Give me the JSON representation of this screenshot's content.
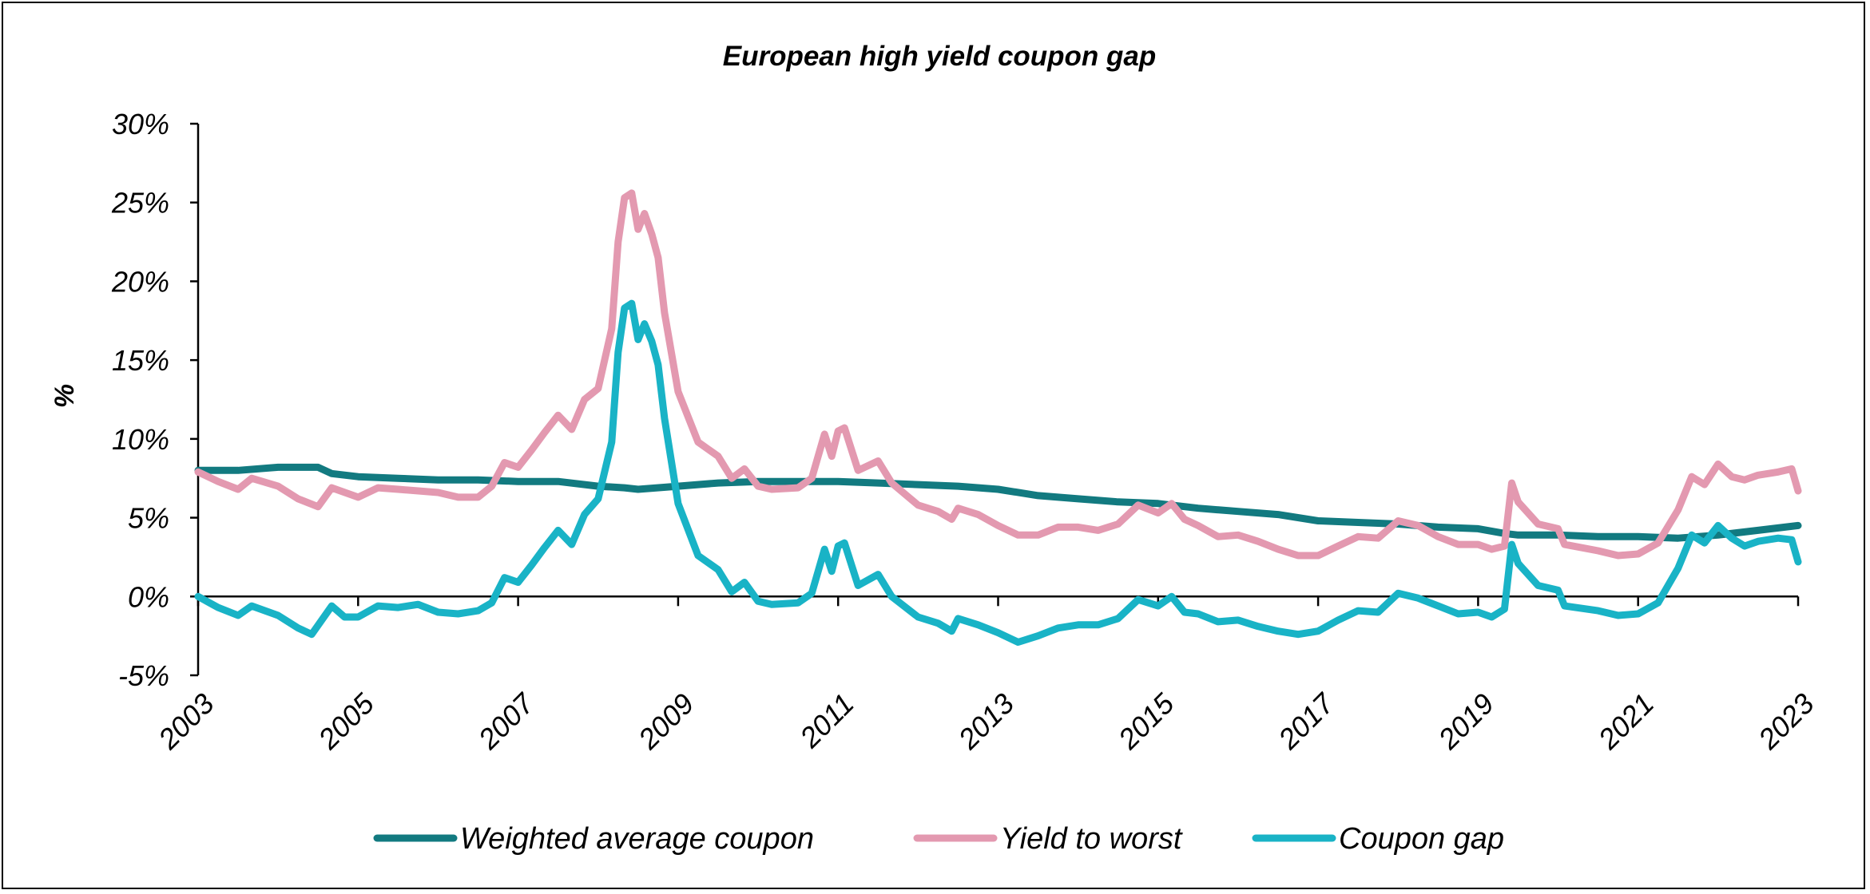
{
  "chart_data": {
    "type": "line",
    "title": "European high yield coupon gap",
    "ylabel": "%",
    "xlabel": "",
    "ylim": [
      -5,
      30
    ],
    "xlim": [
      2003,
      2023
    ],
    "y_ticks": [
      {
        "value": -5,
        "label": "-5%"
      },
      {
        "value": 0,
        "label": "0%"
      },
      {
        "value": 5,
        "label": "5%"
      },
      {
        "value": 10,
        "label": "10%"
      },
      {
        "value": 15,
        "label": "15%"
      },
      {
        "value": 20,
        "label": "20%"
      },
      {
        "value": 25,
        "label": "25%"
      },
      {
        "value": 30,
        "label": "30%"
      }
    ],
    "x_ticks": [
      {
        "value": 2003,
        "label": "2003"
      },
      {
        "value": 2005,
        "label": "2005"
      },
      {
        "value": 2007,
        "label": "2007"
      },
      {
        "value": 2009,
        "label": "2009"
      },
      {
        "value": 2011,
        "label": "2011"
      },
      {
        "value": 2013,
        "label": "2013"
      },
      {
        "value": 2015,
        "label": "2015"
      },
      {
        "value": 2017,
        "label": "2017"
      },
      {
        "value": 2019,
        "label": "2019"
      },
      {
        "value": 2021,
        "label": "2021"
      },
      {
        "value": 2023,
        "label": "2023"
      }
    ],
    "grid": false,
    "legend_position": "bottom",
    "series": [
      {
        "name": "Weighted average coupon",
        "color": "#127A80",
        "points": [
          [
            2003.0,
            8.0
          ],
          [
            2003.5,
            8.0
          ],
          [
            2004.0,
            8.2
          ],
          [
            2004.5,
            8.2
          ],
          [
            2004.67,
            7.8
          ],
          [
            2005.0,
            7.6
          ],
          [
            2005.5,
            7.5
          ],
          [
            2006.0,
            7.4
          ],
          [
            2006.5,
            7.4
          ],
          [
            2007.0,
            7.3
          ],
          [
            2007.5,
            7.3
          ],
          [
            2008.0,
            7.0
          ],
          [
            2008.33,
            6.9
          ],
          [
            2008.5,
            6.8
          ],
          [
            2009.0,
            7.0
          ],
          [
            2009.5,
            7.2
          ],
          [
            2010.0,
            7.3
          ],
          [
            2010.5,
            7.3
          ],
          [
            2011.0,
            7.3
          ],
          [
            2011.5,
            7.2
          ],
          [
            2012.0,
            7.1
          ],
          [
            2012.5,
            7.0
          ],
          [
            2013.0,
            6.8
          ],
          [
            2013.5,
            6.4
          ],
          [
            2014.0,
            6.2
          ],
          [
            2014.5,
            6.0
          ],
          [
            2015.0,
            5.9
          ],
          [
            2015.5,
            5.6
          ],
          [
            2016.0,
            5.4
          ],
          [
            2016.5,
            5.2
          ],
          [
            2017.0,
            4.8
          ],
          [
            2017.5,
            4.7
          ],
          [
            2018.0,
            4.6
          ],
          [
            2018.5,
            4.4
          ],
          [
            2019.0,
            4.3
          ],
          [
            2019.33,
            4.0
          ],
          [
            2019.5,
            3.9
          ],
          [
            2020.0,
            3.9
          ],
          [
            2020.5,
            3.8
          ],
          [
            2021.0,
            3.8
          ],
          [
            2021.5,
            3.7
          ],
          [
            2022.0,
            3.9
          ],
          [
            2022.5,
            4.2
          ],
          [
            2023.0,
            4.5
          ]
        ]
      },
      {
        "name": "Yield to worst",
        "color": "#E399B0",
        "points": [
          [
            2003.0,
            7.9
          ],
          [
            2003.25,
            7.3
          ],
          [
            2003.5,
            6.8
          ],
          [
            2003.67,
            7.5
          ],
          [
            2004.0,
            7.0
          ],
          [
            2004.25,
            6.2
          ],
          [
            2004.5,
            5.7
          ],
          [
            2004.67,
            6.9
          ],
          [
            2005.0,
            6.3
          ],
          [
            2005.25,
            6.9
          ],
          [
            2005.5,
            6.8
          ],
          [
            2006.0,
            6.6
          ],
          [
            2006.25,
            6.3
          ],
          [
            2006.5,
            6.3
          ],
          [
            2006.67,
            7.0
          ],
          [
            2006.83,
            8.5
          ],
          [
            2007.0,
            8.2
          ],
          [
            2007.17,
            9.3
          ],
          [
            2007.33,
            10.4
          ],
          [
            2007.5,
            11.5
          ],
          [
            2007.67,
            10.6
          ],
          [
            2007.83,
            12.5
          ],
          [
            2008.0,
            13.2
          ],
          [
            2008.17,
            17.0
          ],
          [
            2008.25,
            22.5
          ],
          [
            2008.33,
            25.3
          ],
          [
            2008.42,
            25.6
          ],
          [
            2008.5,
            23.3
          ],
          [
            2008.58,
            24.3
          ],
          [
            2008.67,
            23.0
          ],
          [
            2008.75,
            21.5
          ],
          [
            2008.83,
            18.0
          ],
          [
            2009.0,
            13.0
          ],
          [
            2009.25,
            9.8
          ],
          [
            2009.5,
            8.9
          ],
          [
            2009.67,
            7.5
          ],
          [
            2009.83,
            8.1
          ],
          [
            2010.0,
            7.0
          ],
          [
            2010.17,
            6.8
          ],
          [
            2010.5,
            6.9
          ],
          [
            2010.67,
            7.5
          ],
          [
            2010.83,
            10.3
          ],
          [
            2010.92,
            8.9
          ],
          [
            2011.0,
            10.5
          ],
          [
            2011.08,
            10.7
          ],
          [
            2011.25,
            8.0
          ],
          [
            2011.5,
            8.6
          ],
          [
            2011.67,
            7.2
          ],
          [
            2012.0,
            5.8
          ],
          [
            2012.25,
            5.4
          ],
          [
            2012.42,
            4.9
          ],
          [
            2012.5,
            5.6
          ],
          [
            2012.75,
            5.2
          ],
          [
            2013.0,
            4.5
          ],
          [
            2013.25,
            3.9
          ],
          [
            2013.5,
            3.9
          ],
          [
            2013.75,
            4.4
          ],
          [
            2014.0,
            4.4
          ],
          [
            2014.25,
            4.2
          ],
          [
            2014.5,
            4.6
          ],
          [
            2014.75,
            5.8
          ],
          [
            2015.0,
            5.3
          ],
          [
            2015.17,
            5.9
          ],
          [
            2015.33,
            4.9
          ],
          [
            2015.5,
            4.5
          ],
          [
            2015.75,
            3.8
          ],
          [
            2016.0,
            3.9
          ],
          [
            2016.25,
            3.5
          ],
          [
            2016.5,
            3.0
          ],
          [
            2016.75,
            2.6
          ],
          [
            2017.0,
            2.6
          ],
          [
            2017.25,
            3.2
          ],
          [
            2017.5,
            3.8
          ],
          [
            2017.75,
            3.7
          ],
          [
            2018.0,
            4.8
          ],
          [
            2018.25,
            4.5
          ],
          [
            2018.5,
            3.8
          ],
          [
            2018.75,
            3.3
          ],
          [
            2019.0,
            3.3
          ],
          [
            2019.17,
            3.0
          ],
          [
            2019.33,
            3.2
          ],
          [
            2019.42,
            7.2
          ],
          [
            2019.5,
            6.0
          ],
          [
            2019.75,
            4.6
          ],
          [
            2020.0,
            4.3
          ],
          [
            2020.08,
            3.3
          ],
          [
            2020.5,
            2.9
          ],
          [
            2020.75,
            2.6
          ],
          [
            2021.0,
            2.7
          ],
          [
            2021.25,
            3.4
          ],
          [
            2021.5,
            5.5
          ],
          [
            2021.67,
            7.6
          ],
          [
            2021.83,
            7.1
          ],
          [
            2022.0,
            8.4
          ],
          [
            2022.17,
            7.6
          ],
          [
            2022.33,
            7.4
          ],
          [
            2022.5,
            7.7
          ],
          [
            2022.75,
            7.9
          ],
          [
            2022.92,
            8.1
          ],
          [
            2023.0,
            6.7
          ]
        ]
      },
      {
        "name": "Coupon gap",
        "color": "#19B3C6",
        "points": [
          [
            2003.0,
            0.0
          ],
          [
            2003.25,
            -0.7
          ],
          [
            2003.5,
            -1.2
          ],
          [
            2003.67,
            -0.6
          ],
          [
            2004.0,
            -1.2
          ],
          [
            2004.25,
            -2.0
          ],
          [
            2004.42,
            -2.4
          ],
          [
            2004.67,
            -0.6
          ],
          [
            2004.83,
            -1.3
          ],
          [
            2005.0,
            -1.3
          ],
          [
            2005.25,
            -0.6
          ],
          [
            2005.5,
            -0.7
          ],
          [
            2005.75,
            -0.5
          ],
          [
            2006.0,
            -1.0
          ],
          [
            2006.25,
            -1.1
          ],
          [
            2006.5,
            -0.9
          ],
          [
            2006.67,
            -0.4
          ],
          [
            2006.83,
            1.2
          ],
          [
            2007.0,
            0.9
          ],
          [
            2007.17,
            2.0
          ],
          [
            2007.33,
            3.1
          ],
          [
            2007.5,
            4.2
          ],
          [
            2007.67,
            3.3
          ],
          [
            2007.83,
            5.2
          ],
          [
            2008.0,
            6.2
          ],
          [
            2008.17,
            9.8
          ],
          [
            2008.25,
            15.5
          ],
          [
            2008.33,
            18.3
          ],
          [
            2008.42,
            18.6
          ],
          [
            2008.5,
            16.3
          ],
          [
            2008.58,
            17.3
          ],
          [
            2008.67,
            16.2
          ],
          [
            2008.75,
            14.7
          ],
          [
            2008.83,
            11.3
          ],
          [
            2009.0,
            5.9
          ],
          [
            2009.25,
            2.6
          ],
          [
            2009.5,
            1.7
          ],
          [
            2009.67,
            0.3
          ],
          [
            2009.83,
            0.9
          ],
          [
            2010.0,
            -0.3
          ],
          [
            2010.17,
            -0.5
          ],
          [
            2010.5,
            -0.4
          ],
          [
            2010.67,
            0.2
          ],
          [
            2010.83,
            3.0
          ],
          [
            2010.92,
            1.6
          ],
          [
            2011.0,
            3.2
          ],
          [
            2011.08,
            3.4
          ],
          [
            2011.25,
            0.7
          ],
          [
            2011.5,
            1.4
          ],
          [
            2011.67,
            0.0
          ],
          [
            2012.0,
            -1.3
          ],
          [
            2012.25,
            -1.7
          ],
          [
            2012.42,
            -2.2
          ],
          [
            2012.5,
            -1.4
          ],
          [
            2012.75,
            -1.8
          ],
          [
            2013.0,
            -2.3
          ],
          [
            2013.25,
            -2.9
          ],
          [
            2013.5,
            -2.5
          ],
          [
            2013.75,
            -2.0
          ],
          [
            2014.0,
            -1.8
          ],
          [
            2014.25,
            -1.8
          ],
          [
            2014.5,
            -1.4
          ],
          [
            2014.75,
            -0.2
          ],
          [
            2015.0,
            -0.6
          ],
          [
            2015.17,
            0.0
          ],
          [
            2015.33,
            -1.0
          ],
          [
            2015.5,
            -1.1
          ],
          [
            2015.75,
            -1.6
          ],
          [
            2016.0,
            -1.5
          ],
          [
            2016.25,
            -1.9
          ],
          [
            2016.5,
            -2.2
          ],
          [
            2016.75,
            -2.4
          ],
          [
            2017.0,
            -2.2
          ],
          [
            2017.25,
            -1.5
          ],
          [
            2017.5,
            -0.9
          ],
          [
            2017.75,
            -1.0
          ],
          [
            2018.0,
            0.2
          ],
          [
            2018.25,
            -0.1
          ],
          [
            2018.5,
            -0.6
          ],
          [
            2018.75,
            -1.1
          ],
          [
            2019.0,
            -1.0
          ],
          [
            2019.17,
            -1.3
          ],
          [
            2019.33,
            -0.8
          ],
          [
            2019.42,
            3.3
          ],
          [
            2019.5,
            2.1
          ],
          [
            2019.75,
            0.7
          ],
          [
            2020.0,
            0.4
          ],
          [
            2020.08,
            -0.6
          ],
          [
            2020.5,
            -0.9
          ],
          [
            2020.75,
            -1.2
          ],
          [
            2021.0,
            -1.1
          ],
          [
            2021.25,
            -0.4
          ],
          [
            2021.5,
            1.8
          ],
          [
            2021.67,
            3.9
          ],
          [
            2021.83,
            3.4
          ],
          [
            2022.0,
            4.5
          ],
          [
            2022.17,
            3.7
          ],
          [
            2022.33,
            3.2
          ],
          [
            2022.5,
            3.5
          ],
          [
            2022.75,
            3.7
          ],
          [
            2022.92,
            3.6
          ],
          [
            2023.0,
            2.2
          ]
        ]
      }
    ]
  }
}
